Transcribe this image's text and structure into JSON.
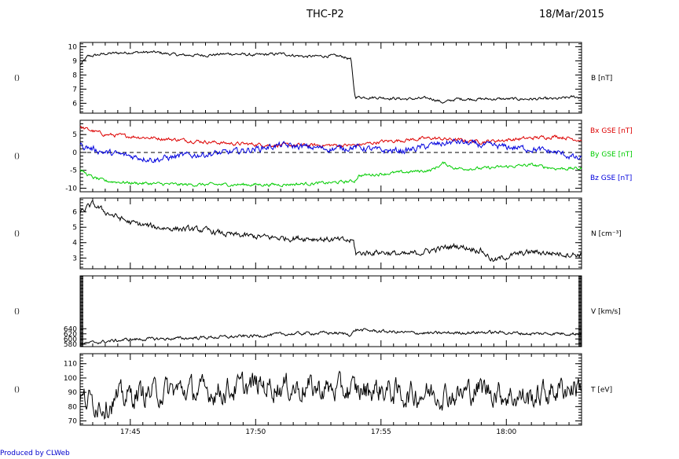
{
  "header": {
    "title": "THC-P2",
    "date": "18/Mar/2015"
  },
  "footer": "Produced by CLWeb",
  "side_label": "()",
  "chart_data": {
    "type": "line",
    "time_range": [
      "17:43:00",
      "18:03:00"
    ],
    "x_ticks": [
      "17:45",
      "17:50",
      "17:55",
      "18:00"
    ],
    "x_tick_minutes": [
      2,
      7,
      12,
      17
    ],
    "panels": [
      {
        "id": "B",
        "ylabel": "B [nT]",
        "ylim": [
          5.3,
          10.3
        ],
        "yticks": [
          6,
          7,
          8,
          9,
          10
        ],
        "series": [
          {
            "color": "#000000",
            "keys": [
              [
                0,
                8.7
              ],
              [
                0.3,
                9.3
              ],
              [
                1,
                9.5
              ],
              [
                2,
                9.6
              ],
              [
                3,
                9.6
              ],
              [
                4,
                9.4
              ],
              [
                5,
                9.4
              ],
              [
                6,
                9.5
              ],
              [
                7,
                9.4
              ],
              [
                8,
                9.5
              ],
              [
                9,
                9.3
              ],
              [
                10,
                9.35
              ],
              [
                10.5,
                9.3
              ],
              [
                10.8,
                9.1
              ],
              [
                10.95,
                6.6
              ],
              [
                11,
                6.45
              ],
              [
                12,
                6.4
              ],
              [
                13,
                6.3
              ],
              [
                14,
                6.35
              ],
              [
                14.5,
                6.05
              ],
              [
                15,
                6.3
              ],
              [
                16,
                6.3
              ],
              [
                17,
                6.3
              ],
              [
                18,
                6.3
              ],
              [
                19,
                6.3
              ],
              [
                19.7,
                6.45
              ],
              [
                20,
                6.4
              ]
            ],
            "noise": 0.08
          }
        ]
      },
      {
        "id": "GSE",
        "ylabel": "",
        "ylim": [
          -11,
          9
        ],
        "yticks": [
          -10,
          -5,
          0,
          5
        ],
        "zero_line": true,
        "series": [
          {
            "name": "Bx GSE [nT]",
            "color": "#dd0000",
            "keys": [
              [
                0,
                7
              ],
              [
                1,
                5
              ],
              [
                2,
                4.5
              ],
              [
                4,
                3.5
              ],
              [
                6,
                2.5
              ],
              [
                8,
                2
              ],
              [
                10,
                2
              ],
              [
                11,
                2
              ],
              [
                12,
                3
              ],
              [
                13,
                3.5
              ],
              [
                14,
                4
              ],
              [
                15,
                3.5
              ],
              [
                16,
                3
              ],
              [
                17,
                3.5
              ],
              [
                18,
                4
              ],
              [
                19,
                4.5
              ],
              [
                20,
                3.5
              ]
            ],
            "noise": 0.4
          },
          {
            "name": "By GSE [nT]",
            "color": "#00cc00",
            "keys": [
              [
                0,
                -5
              ],
              [
                0.5,
                -7
              ],
              [
                1,
                -8
              ],
              [
                2,
                -8.5
              ],
              [
                4,
                -9
              ],
              [
                6,
                -9
              ],
              [
                8,
                -9
              ],
              [
                10,
                -8.5
              ],
              [
                10.95,
                -8
              ],
              [
                11.1,
                -6.5
              ],
              [
                12,
                -6
              ],
              [
                13,
                -5.5
              ],
              [
                14,
                -5
              ],
              [
                14.5,
                -3
              ],
              [
                15,
                -4.5
              ],
              [
                16,
                -4.5
              ],
              [
                17,
                -4
              ],
              [
                18,
                -3.5
              ],
              [
                19,
                -4.5
              ],
              [
                20,
                -4.5
              ]
            ],
            "noise": 0.35
          },
          {
            "name": "Bz GSE [nT]",
            "color": "#0000dd",
            "keys": [
              [
                0,
                2
              ],
              [
                1,
                0
              ],
              [
                2,
                -1
              ],
              [
                3,
                -2
              ],
              [
                4,
                -1
              ],
              [
                5,
                -0.5
              ],
              [
                6,
                0
              ],
              [
                7,
                1
              ],
              [
                8,
                2
              ],
              [
                9,
                1.5
              ],
              [
                10,
                1
              ],
              [
                11,
                1.5
              ],
              [
                12,
                0.5
              ],
              [
                13,
                0.5
              ],
              [
                14,
                2
              ],
              [
                15,
                3
              ],
              [
                16,
                2
              ],
              [
                17,
                1.5
              ],
              [
                18,
                1
              ],
              [
                19,
                0
              ],
              [
                20,
                -2
              ]
            ],
            "noise": 0.7
          }
        ]
      },
      {
        "id": "N",
        "ylabel": "N [cm^-3]",
        "ylim": [
          2.3,
          6.9
        ],
        "yticks": [
          3,
          4,
          5,
          6
        ],
        "series": [
          {
            "color": "#000000",
            "keys": [
              [
                0,
                6
              ],
              [
                0.5,
                6.5
              ],
              [
                1,
                6
              ],
              [
                2,
                5.3
              ],
              [
                3,
                5
              ],
              [
                4,
                4.9
              ],
              [
                5,
                4.8
              ],
              [
                6,
                4.5
              ],
              [
                7,
                4.4
              ],
              [
                8,
                4.3
              ],
              [
                9,
                4.3
              ],
              [
                10,
                4.2
              ],
              [
                10.9,
                4.1
              ],
              [
                11,
                3.3
              ],
              [
                12,
                3.4
              ],
              [
                13,
                3.2
              ],
              [
                14,
                3.5
              ],
              [
                15,
                3.8
              ],
              [
                16,
                3.5
              ],
              [
                16.5,
                2.8
              ],
              [
                17,
                3.1
              ],
              [
                18,
                3.4
              ],
              [
                19,
                3.3
              ],
              [
                20,
                3.2
              ]
            ],
            "noise": 0.15
          }
        ]
      },
      {
        "id": "V",
        "ylabel": "V [km/s]",
        "ylim": [
          570,
          847
        ],
        "yticks": [
          580,
          600,
          620,
          640
        ],
        "series": [
          {
            "color": "#000000",
            "keys": [
              [
                0,
                580
              ],
              [
                1,
                590
              ],
              [
                2,
                598
              ],
              [
                3,
                600
              ],
              [
                4,
                602
              ],
              [
                5,
                606
              ],
              [
                6,
                608
              ],
              [
                7,
                612
              ],
              [
                8,
                618
              ],
              [
                9,
                622
              ],
              [
                10,
                624
              ],
              [
                10.8,
                618
              ],
              [
                11,
                636
              ],
              [
                12,
                630
              ],
              [
                13,
                625
              ],
              [
                14,
                622
              ],
              [
                15,
                624
              ],
              [
                16,
                626
              ],
              [
                17,
                625
              ],
              [
                18,
                620
              ],
              [
                19,
                622
              ],
              [
                20,
                620
              ]
            ],
            "noise": 5
          }
        ]
      },
      {
        "id": "T",
        "ylabel": "T [eV]",
        "ylim": [
          67,
          117
        ],
        "yticks": [
          70,
          80,
          90,
          100,
          110
        ],
        "series": [
          {
            "color": "#000000",
            "keys": [
              [
                0,
                85
              ],
              [
                1,
                82
              ],
              [
                2,
                88
              ],
              [
                3,
                90
              ],
              [
                4,
                92
              ],
              [
                5,
                90
              ],
              [
                6,
                92
              ],
              [
                7,
                95
              ],
              [
                8,
                94
              ],
              [
                9,
                93
              ],
              [
                10,
                92
              ],
              [
                11,
                91
              ],
              [
                12,
                92
              ],
              [
                13,
                88
              ],
              [
                14,
                90
              ],
              [
                15,
                88
              ],
              [
                16,
                93
              ],
              [
                17,
                88
              ],
              [
                18,
                86
              ],
              [
                19,
                92
              ],
              [
                20,
                95
              ]
            ],
            "noise": 7
          }
        ]
      }
    ]
  }
}
